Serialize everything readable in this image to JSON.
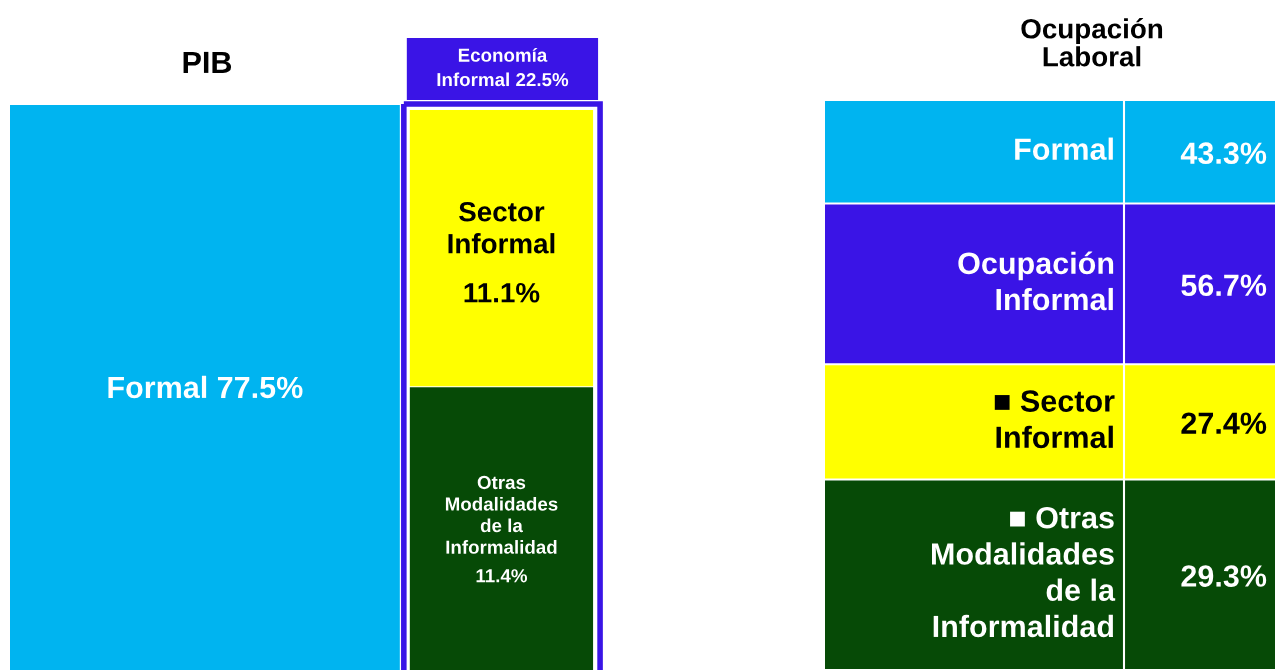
{
  "chart_data": [
    {
      "type": "other",
      "title": "PIB",
      "categories": [
        "Formal",
        "Economía Informal",
        "Sector Informal",
        "Otras Modalidades de la Informalidad"
      ],
      "values": [
        77.5,
        22.5,
        11.1,
        11.4
      ],
      "value_labels": [
        "77.5%",
        "22.5%",
        "11.1%",
        "11.4%"
      ],
      "colors": [
        "#00b4f0",
        "#3a14e6",
        "#ffff00",
        "#064a06"
      ]
    },
    {
      "type": "other",
      "title": "Ocupación Laboral",
      "categories": [
        "Formal",
        "Ocupación Informal",
        "■ Sector Informal",
        "■ Otras Modalidades de la Informalidad"
      ],
      "values": [
        43.3,
        56.7,
        27.4,
        29.3
      ],
      "value_labels": [
        "43.3%",
        "56.7%",
        "27.4%",
        "29.3%"
      ],
      "colors": [
        "#00b4f0",
        "#3a14e6",
        "#ffff00",
        "#064a06"
      ]
    }
  ]
}
